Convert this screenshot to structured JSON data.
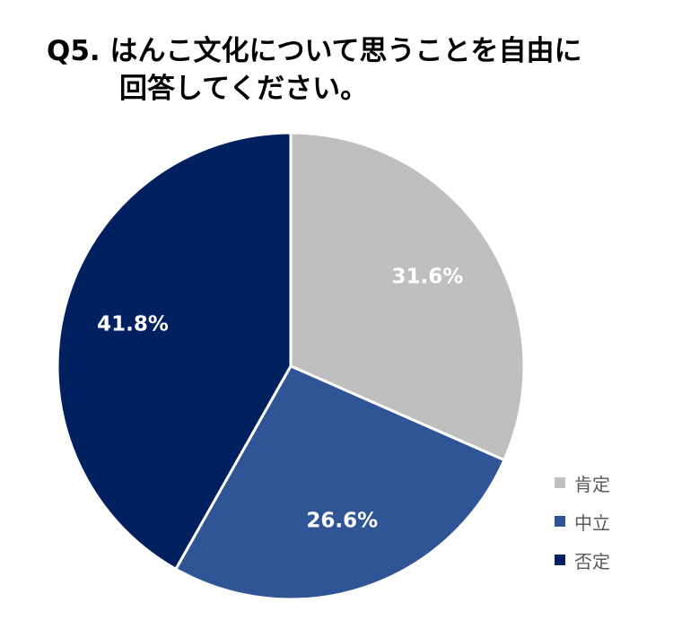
{
  "chart_data": {
    "type": "pie",
    "title": [
      "Q5. はんこ文化について思うことを自由に",
      "回答してください。"
    ],
    "categories": [
      "肯定",
      "中立",
      "否定"
    ],
    "values": [
      31.6,
      26.6,
      41.8
    ],
    "value_labels": [
      "31.6%",
      "26.6%",
      "41.8%"
    ],
    "colors": [
      "#BFBFBF",
      "#2F5597",
      "#002060"
    ],
    "start_angle": "12 o'clock",
    "direction": "clockwise",
    "legend_position": "bottom-right"
  }
}
